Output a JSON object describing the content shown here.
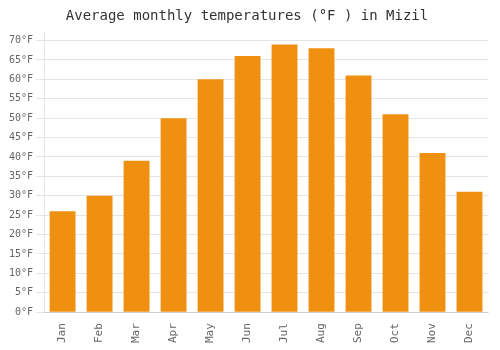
{
  "chart_data": {
    "type": "bar",
    "title": "Average monthly temperatures (°F ) in Mizil",
    "categories": [
      "Jan",
      "Feb",
      "Mar",
      "Apr",
      "May",
      "Jun",
      "Jul",
      "Aug",
      "Sep",
      "Oct",
      "Nov",
      "Dec"
    ],
    "values": [
      26,
      30,
      39,
      50,
      60,
      66,
      69,
      68,
      61,
      51,
      41,
      31
    ],
    "color": "#F09010",
    "ylim": [
      0,
      72
    ],
    "yticks": [
      {
        "value": 0,
        "label": "0°F"
      },
      {
        "value": 5,
        "label": "5°F"
      },
      {
        "value": 10,
        "label": "10°F"
      },
      {
        "value": 15,
        "label": "15°F"
      },
      {
        "value": 20,
        "label": "20°F"
      },
      {
        "value": 25,
        "label": "25°F"
      },
      {
        "value": 30,
        "label": "30°F"
      },
      {
        "value": 35,
        "label": "35°F"
      },
      {
        "value": 40,
        "label": "40°F"
      },
      {
        "value": 45,
        "label": "45°F"
      },
      {
        "value": 50,
        "label": "50°F"
      },
      {
        "value": 55,
        "label": "55°F"
      },
      {
        "value": 60,
        "label": "60°F"
      },
      {
        "value": 65,
        "label": "65°F"
      },
      {
        "value": 70,
        "label": "70°F"
      }
    ],
    "grid": true
  }
}
